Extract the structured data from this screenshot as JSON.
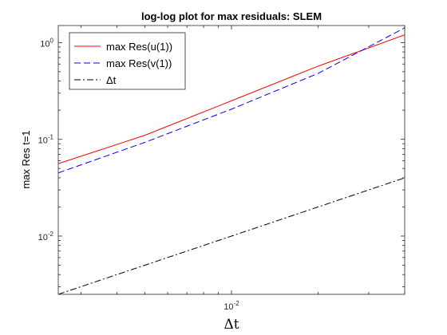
{
  "chart_data": {
    "type": "line",
    "title": "log-log plot for max residuals: SLEM",
    "xlabel": "Δt",
    "ylabel": "max Res t=1",
    "x_scale": "log",
    "y_scale": "log",
    "xlim": [
      0.0025,
      0.04
    ],
    "ylim": [
      0.0025,
      1.5
    ],
    "grid": false,
    "legend_position": "top-left",
    "x_ticks": [
      {
        "value": 0.01,
        "base": "10",
        "exp": "-2"
      }
    ],
    "y_ticks": [
      {
        "value": 0.01,
        "base": "10",
        "exp": "-2"
      },
      {
        "value": 0.1,
        "base": "10",
        "exp": "-1"
      },
      {
        "value": 1,
        "base": "10",
        "exp": "0"
      }
    ],
    "series": [
      {
        "name": "max Res(u(1))",
        "color": "#ff0000",
        "dash": "solid",
        "x": [
          0.0025,
          0.005,
          0.01,
          0.02,
          0.04
        ],
        "y": [
          0.056,
          0.11,
          0.25,
          0.57,
          1.2
        ]
      },
      {
        "name": "max Res(v(1))",
        "color": "#0000ff",
        "dash": "dashed",
        "x": [
          0.0025,
          0.005,
          0.01,
          0.02,
          0.04
        ],
        "y": [
          0.045,
          0.093,
          0.205,
          0.48,
          1.42
        ]
      },
      {
        "name": "Δt",
        "color": "#000000",
        "dash": "dashdot",
        "x": [
          0.0025,
          0.04
        ],
        "y": [
          0.0025,
          0.04
        ]
      }
    ]
  }
}
